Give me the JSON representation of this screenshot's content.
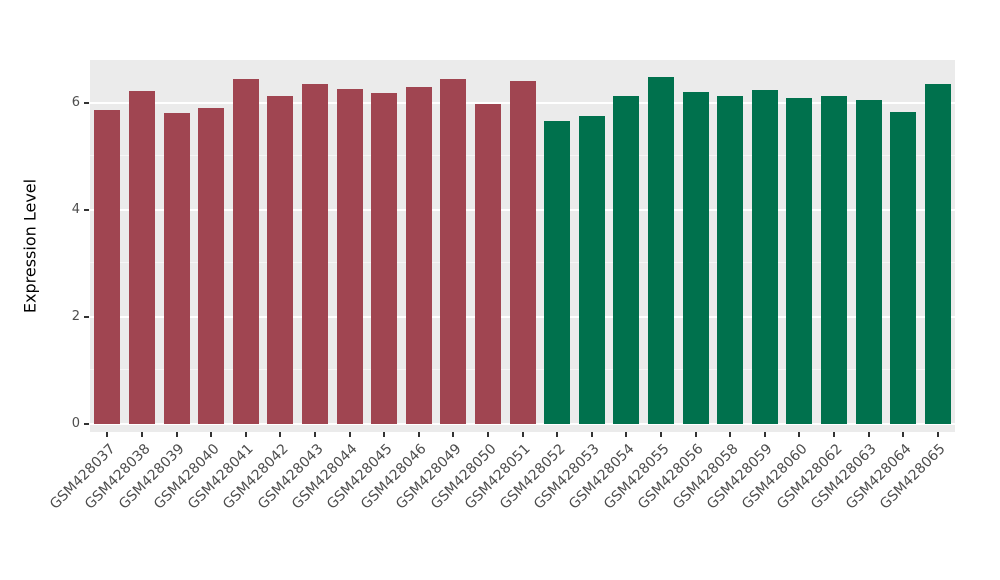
{
  "chart_data": {
    "type": "bar",
    "title": "",
    "xlabel": "",
    "ylabel": "Expression Level",
    "ylim": [
      0,
      6.8
    ],
    "yticks": [
      0,
      2,
      4,
      6
    ],
    "yticks_minor": [
      1,
      3,
      5
    ],
    "legend": "none",
    "grid": "on",
    "panel_background": "#EBEBEB",
    "grid_color": "#FFFFFF",
    "axis_text_color": "#4D4D4D",
    "group_colors": {
      "red": "#A04551",
      "green": "#00714D"
    },
    "categories": [
      "GSM428037",
      "GSM428038",
      "GSM428039",
      "GSM428040",
      "GSM428041",
      "GSM428042",
      "GSM428043",
      "GSM428044",
      "GSM428045",
      "GSM428046",
      "GSM428049",
      "GSM428050",
      "GSM428051",
      "GSM428052",
      "GSM428053",
      "GSM428054",
      "GSM428055",
      "GSM428056",
      "GSM428058",
      "GSM428059",
      "GSM428060",
      "GSM428062",
      "GSM428063",
      "GSM428064",
      "GSM428065"
    ],
    "values": [
      5.87,
      6.22,
      5.81,
      5.91,
      6.45,
      6.13,
      6.36,
      6.26,
      6.19,
      6.3,
      6.45,
      5.98,
      6.41,
      5.66,
      5.76,
      6.13,
      6.49,
      6.21,
      6.13,
      6.24,
      6.09,
      6.13,
      6.06,
      5.82,
      6.36
    ],
    "groups": [
      "red",
      "red",
      "red",
      "red",
      "red",
      "red",
      "red",
      "red",
      "red",
      "red",
      "red",
      "red",
      "red",
      "green",
      "green",
      "green",
      "green",
      "green",
      "green",
      "green",
      "green",
      "green",
      "green",
      "green",
      "green"
    ]
  }
}
